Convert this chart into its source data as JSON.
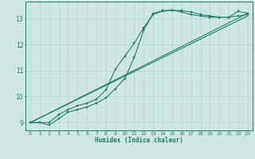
{
  "xlabel": "Humidex (Indice chaleur)",
  "ylabel": "",
  "bg_color": "#cde8e4",
  "grid_color": "#b0d8d4",
  "line_color": "#2a7a6a",
  "xlim": [
    -0.5,
    23.5
  ],
  "ylim": [
    8.7,
    13.65
  ],
  "xticks": [
    0,
    1,
    2,
    3,
    4,
    5,
    6,
    7,
    8,
    9,
    10,
    11,
    12,
    13,
    14,
    15,
    16,
    17,
    18,
    19,
    20,
    21,
    22,
    23
  ],
  "yticks": [
    9,
    10,
    11,
    12,
    13
  ],
  "series": [
    {
      "x": [
        0,
        1,
        2,
        3,
        4,
        5,
        6,
        7,
        8,
        9,
        10,
        11,
        12,
        13,
        14,
        15,
        16,
        17,
        18,
        19,
        20,
        21,
        22,
        23
      ],
      "y": [
        9.0,
        9.0,
        9.0,
        9.3,
        9.5,
        9.65,
        9.75,
        9.9,
        10.25,
        11.05,
        11.55,
        12.05,
        12.65,
        13.15,
        13.28,
        13.32,
        13.3,
        13.25,
        13.15,
        13.1,
        13.05,
        13.05,
        13.28,
        13.2
      ],
      "marker": true
    },
    {
      "x": [
        0,
        1,
        2,
        3,
        4,
        5,
        6,
        7,
        8,
        9,
        10,
        11,
        12,
        13,
        14,
        15,
        16,
        17,
        18,
        19,
        20,
        21,
        22,
        23
      ],
      "y": [
        9.0,
        9.0,
        8.9,
        9.15,
        9.4,
        9.5,
        9.6,
        9.75,
        9.95,
        10.3,
        10.7,
        11.5,
        12.55,
        13.2,
        13.3,
        13.32,
        13.25,
        13.15,
        13.1,
        13.05,
        13.05,
        13.05,
        13.1,
        13.15
      ],
      "marker": true
    },
    {
      "x": [
        0,
        23
      ],
      "y": [
        9.0,
        13.2
      ],
      "marker": false
    },
    {
      "x": [
        0,
        23
      ],
      "y": [
        9.0,
        13.1
      ],
      "marker": false
    }
  ]
}
